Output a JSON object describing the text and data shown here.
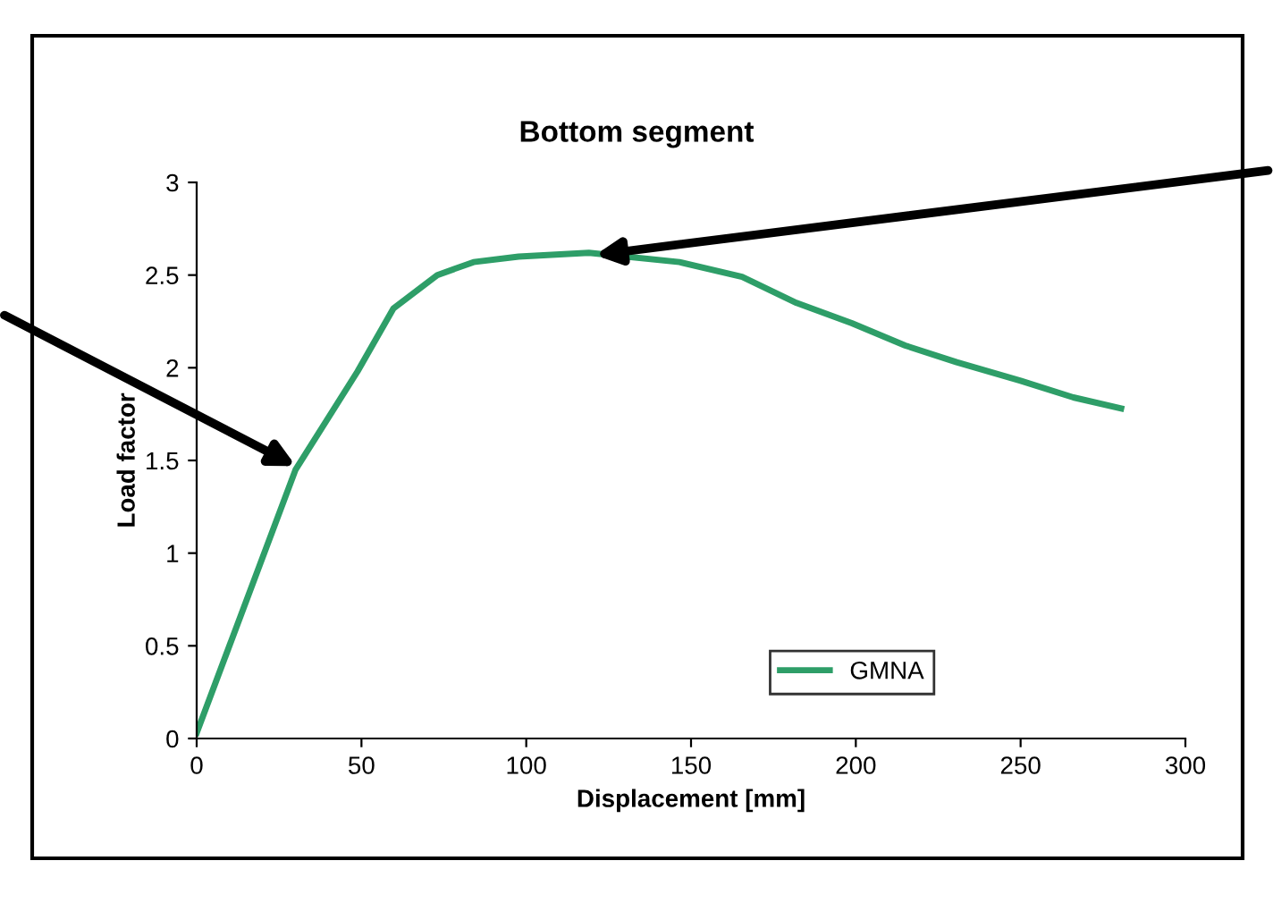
{
  "chart_data": {
    "type": "line",
    "title": "Bottom segment",
    "xlabel": "Displacement [mm]",
    "ylabel": "Load factor",
    "x": [
      0,
      30,
      48.8,
      59.7,
      73,
      84,
      97.7,
      119,
      146.5,
      165.5,
      182,
      198.8,
      215,
      230.6,
      250,
      266,
      280.5
    ],
    "series": [
      {
        "name": "GMNA",
        "color": "#2e9e68",
        "values": [
          0.03,
          1.45,
          1.98,
          2.32,
          2.5,
          2.57,
          2.6,
          2.62,
          2.57,
          2.49,
          2.35,
          2.24,
          2.12,
          2.03,
          1.93,
          1.84,
          1.78
        ]
      }
    ],
    "xlim": [
      0,
      300
    ],
    "xticks": [
      0,
      50,
      100,
      150,
      200,
      250,
      300
    ],
    "ylim": [
      0,
      3
    ],
    "yticks": [
      0,
      0.5,
      1,
      1.5,
      2,
      2.5,
      3
    ],
    "grid": false,
    "legend": "bottom right",
    "marker": "none",
    "line_style": "solid"
  }
}
